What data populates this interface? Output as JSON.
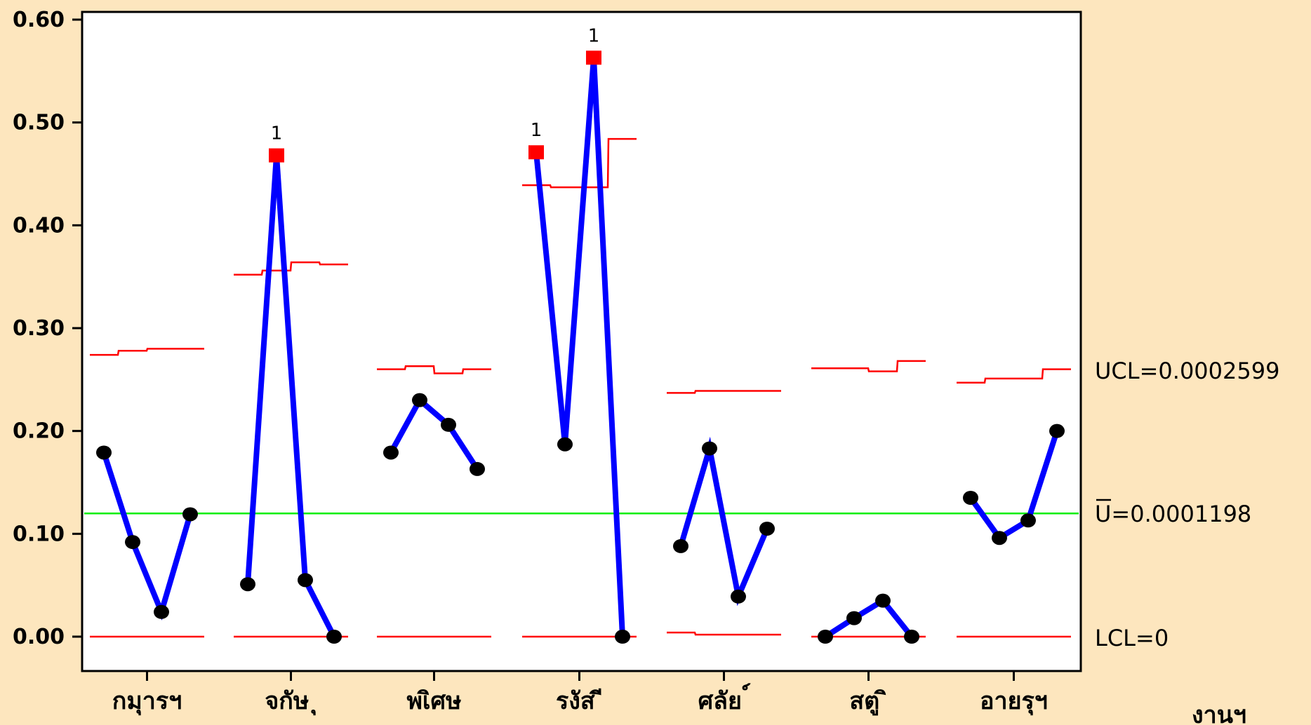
{
  "chart_data": {
    "type": "line",
    "title": "",
    "xlabel": "งานฯ",
    "ylabel": "",
    "ylim": [
      0,
      0.6
    ],
    "y_ticks": [
      "0.00",
      "0.10",
      "0.20",
      "0.30",
      "0.40",
      "0.50",
      "0.60"
    ],
    "y_tick_values": [
      0,
      0.1,
      0.2,
      0.3,
      0.4,
      0.5,
      0.6
    ],
    "categories": [
      "กมุารฯ",
      "จกัษ ุ",
      "พเิศษ",
      "รงัส ี",
      "ศลัย ์",
      "สตู ิ",
      "อายรุฯ"
    ],
    "groups": [
      {
        "name": "กมุารฯ",
        "values": [
          0.179,
          0.092,
          0.024,
          0.119
        ],
        "ucl": [
          0.274,
          0.278,
          0.28,
          0.28
        ]
      },
      {
        "name": "จกัษ ุ",
        "values": [
          0.051,
          0.468,
          0.055,
          0.0
        ],
        "ucl": [
          0.352,
          0.356,
          0.364,
          0.362
        ]
      },
      {
        "name": "พเิศษ",
        "values": [
          0.179,
          0.23,
          0.206,
          0.163
        ],
        "ucl": [
          0.26,
          0.263,
          0.256,
          0.26
        ]
      },
      {
        "name": "รงัส ี",
        "values": [
          0.471,
          0.187,
          0.563,
          0.0
        ],
        "ucl": [
          0.439,
          0.437,
          0.437,
          0.484
        ]
      },
      {
        "name": "ศลัย ์",
        "values": [
          0.088,
          0.183,
          0.039,
          0.105
        ],
        "ucl": [
          0.237,
          0.239,
          0.239,
          0.239
        ],
        "lcl": [
          0.004,
          0.002,
          0.002,
          0.002
        ]
      },
      {
        "name": "สตู ิ",
        "values": [
          0.0,
          0.018,
          0.035,
          0.0
        ],
        "ucl": [
          0.261,
          0.261,
          0.258,
          0.268
        ]
      },
      {
        "name": "อายรุฯ",
        "values": [
          0.135,
          0.096,
          0.113,
          0.2
        ],
        "ucl": [
          0.247,
          0.251,
          0.251,
          0.26
        ]
      }
    ],
    "out_of_control": [
      {
        "group": 1,
        "index": 1,
        "label": "1"
      },
      {
        "group": 3,
        "index": 0,
        "label": "1"
      },
      {
        "group": 3,
        "index": 2,
        "label": "1"
      }
    ],
    "center_line": {
      "value": 0.1198,
      "label": "U=0.0001198"
    },
    "ucl_label": "UCL=0.0002599",
    "lcl_label": "LCL=0",
    "colors": {
      "series": "#0000ff",
      "point": "#000000",
      "out_point": "#ff0000",
      "limits": "#ff0000",
      "center": "#00ee00",
      "background": "#fde6be",
      "plot_background": "#ffffff"
    },
    "grid": false,
    "legend": "none"
  }
}
